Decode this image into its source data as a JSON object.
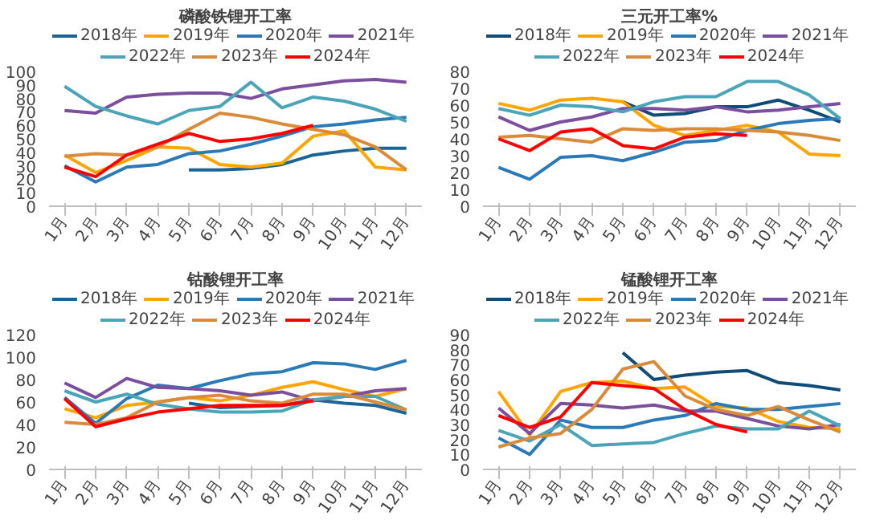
{
  "chart_data": [
    {
      "type": "line",
      "title": "磷酸铁锂开工率",
      "categories": [
        "1月",
        "2月",
        "3月",
        "4月",
        "5月",
        "6月",
        "7月",
        "8月",
        "9月",
        "10月",
        "11月",
        "12月"
      ],
      "ylim": [
        0,
        100
      ],
      "yticks": [
        0,
        10,
        20,
        30,
        40,
        50,
        60,
        70,
        80,
        90,
        100
      ],
      "grid": false,
      "legend": "top",
      "marker": "none",
      "line_style": "solid",
      "series": [
        {
          "name": "2018年",
          "color": "#1a6496",
          "values": [
            null,
            null,
            null,
            null,
            27,
            27,
            28,
            31,
            38,
            41,
            43,
            43
          ]
        },
        {
          "name": "2019年",
          "color": "#ffa500",
          "values": [
            38,
            25,
            34,
            44,
            43,
            31,
            29,
            32,
            52,
            56,
            29,
            27
          ]
        },
        {
          "name": "2020年",
          "color": "#2a7ab8",
          "values": [
            30,
            18,
            29,
            31,
            39,
            41,
            46,
            52,
            59,
            61,
            64,
            66
          ]
        },
        {
          "name": "2021年",
          "color": "#7b4f9d",
          "values": [
            71,
            69,
            81,
            83,
            84,
            84,
            80,
            87,
            90,
            93,
            94,
            92
          ]
        },
        {
          "name": "2022年",
          "color": "#4aa5b9",
          "values": [
            89,
            74,
            67,
            61,
            71,
            74,
            92,
            73,
            81,
            78,
            72,
            63
          ]
        },
        {
          "name": "2023年",
          "color": "#d98b3a",
          "values": [
            37,
            39,
            38,
            44,
            57,
            69,
            66,
            61,
            57,
            53,
            44,
            27
          ]
        },
        {
          "name": "2024年",
          "color": "#ff0000",
          "values": [
            29,
            22,
            38,
            46,
            54,
            48,
            50,
            54,
            60,
            null,
            null,
            null
          ]
        }
      ]
    },
    {
      "type": "line",
      "title": "三元开工率%",
      "categories": [
        "1月",
        "2月",
        "3月",
        "4月",
        "5月",
        "6月",
        "7月",
        "8月",
        "9月",
        "10月",
        "11月",
        "12月"
      ],
      "ylim": [
        0,
        80
      ],
      "yticks": [
        0,
        10,
        20,
        30,
        40,
        50,
        60,
        70,
        80
      ],
      "grid": false,
      "legend": "top",
      "marker": "none",
      "line_style": "solid",
      "series": [
        {
          "name": "2018年",
          "color": "#0f4c78",
          "values": [
            null,
            null,
            null,
            null,
            62,
            54,
            55,
            59,
            59,
            63,
            57,
            50
          ]
        },
        {
          "name": "2019年",
          "color": "#ffa500",
          "values": [
            61,
            57,
            63,
            64,
            62,
            48,
            42,
            45,
            48,
            44,
            31,
            30
          ]
        },
        {
          "name": "2020年",
          "color": "#2a7ab8",
          "values": [
            23,
            16,
            29,
            30,
            27,
            32,
            38,
            39,
            45,
            49,
            51,
            52
          ]
        },
        {
          "name": "2021年",
          "color": "#7b4f9d",
          "values": [
            53,
            45,
            50,
            53,
            58,
            58,
            57,
            59,
            56,
            57,
            59,
            61
          ]
        },
        {
          "name": "2022年",
          "color": "#4aa5b9",
          "values": [
            58,
            54,
            60,
            59,
            56,
            62,
            65,
            65,
            74,
            74,
            66,
            52
          ]
        },
        {
          "name": "2023年",
          "color": "#d98b3a",
          "values": [
            41,
            42,
            40,
            38,
            46,
            45,
            46,
            46,
            45,
            44,
            42,
            39
          ]
        },
        {
          "name": "2024年",
          "color": "#ff0000",
          "values": [
            40,
            33,
            44,
            46,
            36,
            34,
            41,
            43,
            42,
            null,
            null,
            null
          ]
        }
      ]
    },
    {
      "type": "line",
      "title": "钴酸锂开工率",
      "categories": [
        "1月",
        "2月",
        "3月",
        "4月",
        "5月",
        "6月",
        "7月",
        "8月",
        "9月",
        "10月",
        "11月",
        "12月"
      ],
      "ylim": [
        0,
        120
      ],
      "yticks": [
        0,
        20,
        40,
        60,
        80,
        100,
        120
      ],
      "grid": false,
      "legend": "top",
      "marker": "none",
      "line_style": "solid",
      "series": [
        {
          "name": "2018年",
          "color": "#1a6496",
          "values": [
            null,
            null,
            null,
            null,
            59,
            55,
            56,
            57,
            62,
            59,
            57,
            50
          ]
        },
        {
          "name": "2019年",
          "color": "#ffa500",
          "values": [
            54,
            46,
            57,
            60,
            64,
            61,
            66,
            73,
            78,
            71,
            65,
            72
          ]
        },
        {
          "name": "2020年",
          "color": "#2a7ab8",
          "values": [
            64,
            41,
            63,
            75,
            72,
            79,
            85,
            87,
            95,
            94,
            89,
            97
          ]
        },
        {
          "name": "2021年",
          "color": "#7b4f9d",
          "values": [
            77,
            64,
            81,
            73,
            72,
            70,
            66,
            69,
            61,
            65,
            70,
            72
          ]
        },
        {
          "name": "2022年",
          "color": "#4aa5b9",
          "values": [
            70,
            60,
            67,
            58,
            54,
            51,
            51,
            52,
            62,
            65,
            65,
            53
          ]
        },
        {
          "name": "2023年",
          "color": "#d98b3a",
          "values": [
            42,
            40,
            46,
            60,
            64,
            66,
            61,
            59,
            67,
            67,
            60,
            53
          ]
        },
        {
          "name": "2024年",
          "color": "#ff0000",
          "values": [
            63,
            38,
            45,
            51,
            54,
            57,
            57,
            57,
            61,
            null,
            null,
            null
          ]
        }
      ]
    },
    {
      "type": "line",
      "title": "锰酸锂开工率",
      "categories": [
        "1月",
        "2月",
        "3月",
        "4月",
        "5月",
        "6月",
        "7月",
        "8月",
        "9月",
        "10月",
        "11月",
        "12月"
      ],
      "ylim": [
        0,
        90
      ],
      "yticks": [
        0,
        10,
        20,
        30,
        40,
        50,
        60,
        70,
        80,
        90
      ],
      "grid": false,
      "legend": "top",
      "marker": "none",
      "line_style": "solid",
      "series": [
        {
          "name": "2018年",
          "color": "#0f4c78",
          "values": [
            null,
            null,
            null,
            null,
            78,
            60,
            63,
            65,
            66,
            58,
            56,
            53
          ]
        },
        {
          "name": "2019年",
          "color": "#ffa500",
          "values": [
            52,
            23,
            52,
            58,
            59,
            54,
            55,
            42,
            41,
            32,
            28,
            27
          ]
        },
        {
          "name": "2020年",
          "color": "#2a7ab8",
          "values": [
            21,
            10,
            33,
            28,
            28,
            33,
            36,
            44,
            40,
            40,
            42,
            44
          ]
        },
        {
          "name": "2021年",
          "color": "#7b4f9d",
          "values": [
            41,
            24,
            44,
            43,
            41,
            43,
            39,
            39,
            34,
            29,
            27,
            30
          ]
        },
        {
          "name": "2022年",
          "color": "#4aa5b9",
          "values": [
            26,
            19,
            30,
            16,
            17,
            18,
            24,
            29,
            27,
            27,
            39,
            29
          ]
        },
        {
          "name": "2023年",
          "color": "#d98b3a",
          "values": [
            15,
            21,
            24,
            40,
            67,
            72,
            49,
            40,
            36,
            42,
            33,
            25
          ]
        },
        {
          "name": "2024年",
          "color": "#ff0000",
          "values": [
            36,
            28,
            35,
            58,
            56,
            54,
            40,
            30,
            25,
            null,
            null,
            null
          ]
        }
      ]
    }
  ]
}
